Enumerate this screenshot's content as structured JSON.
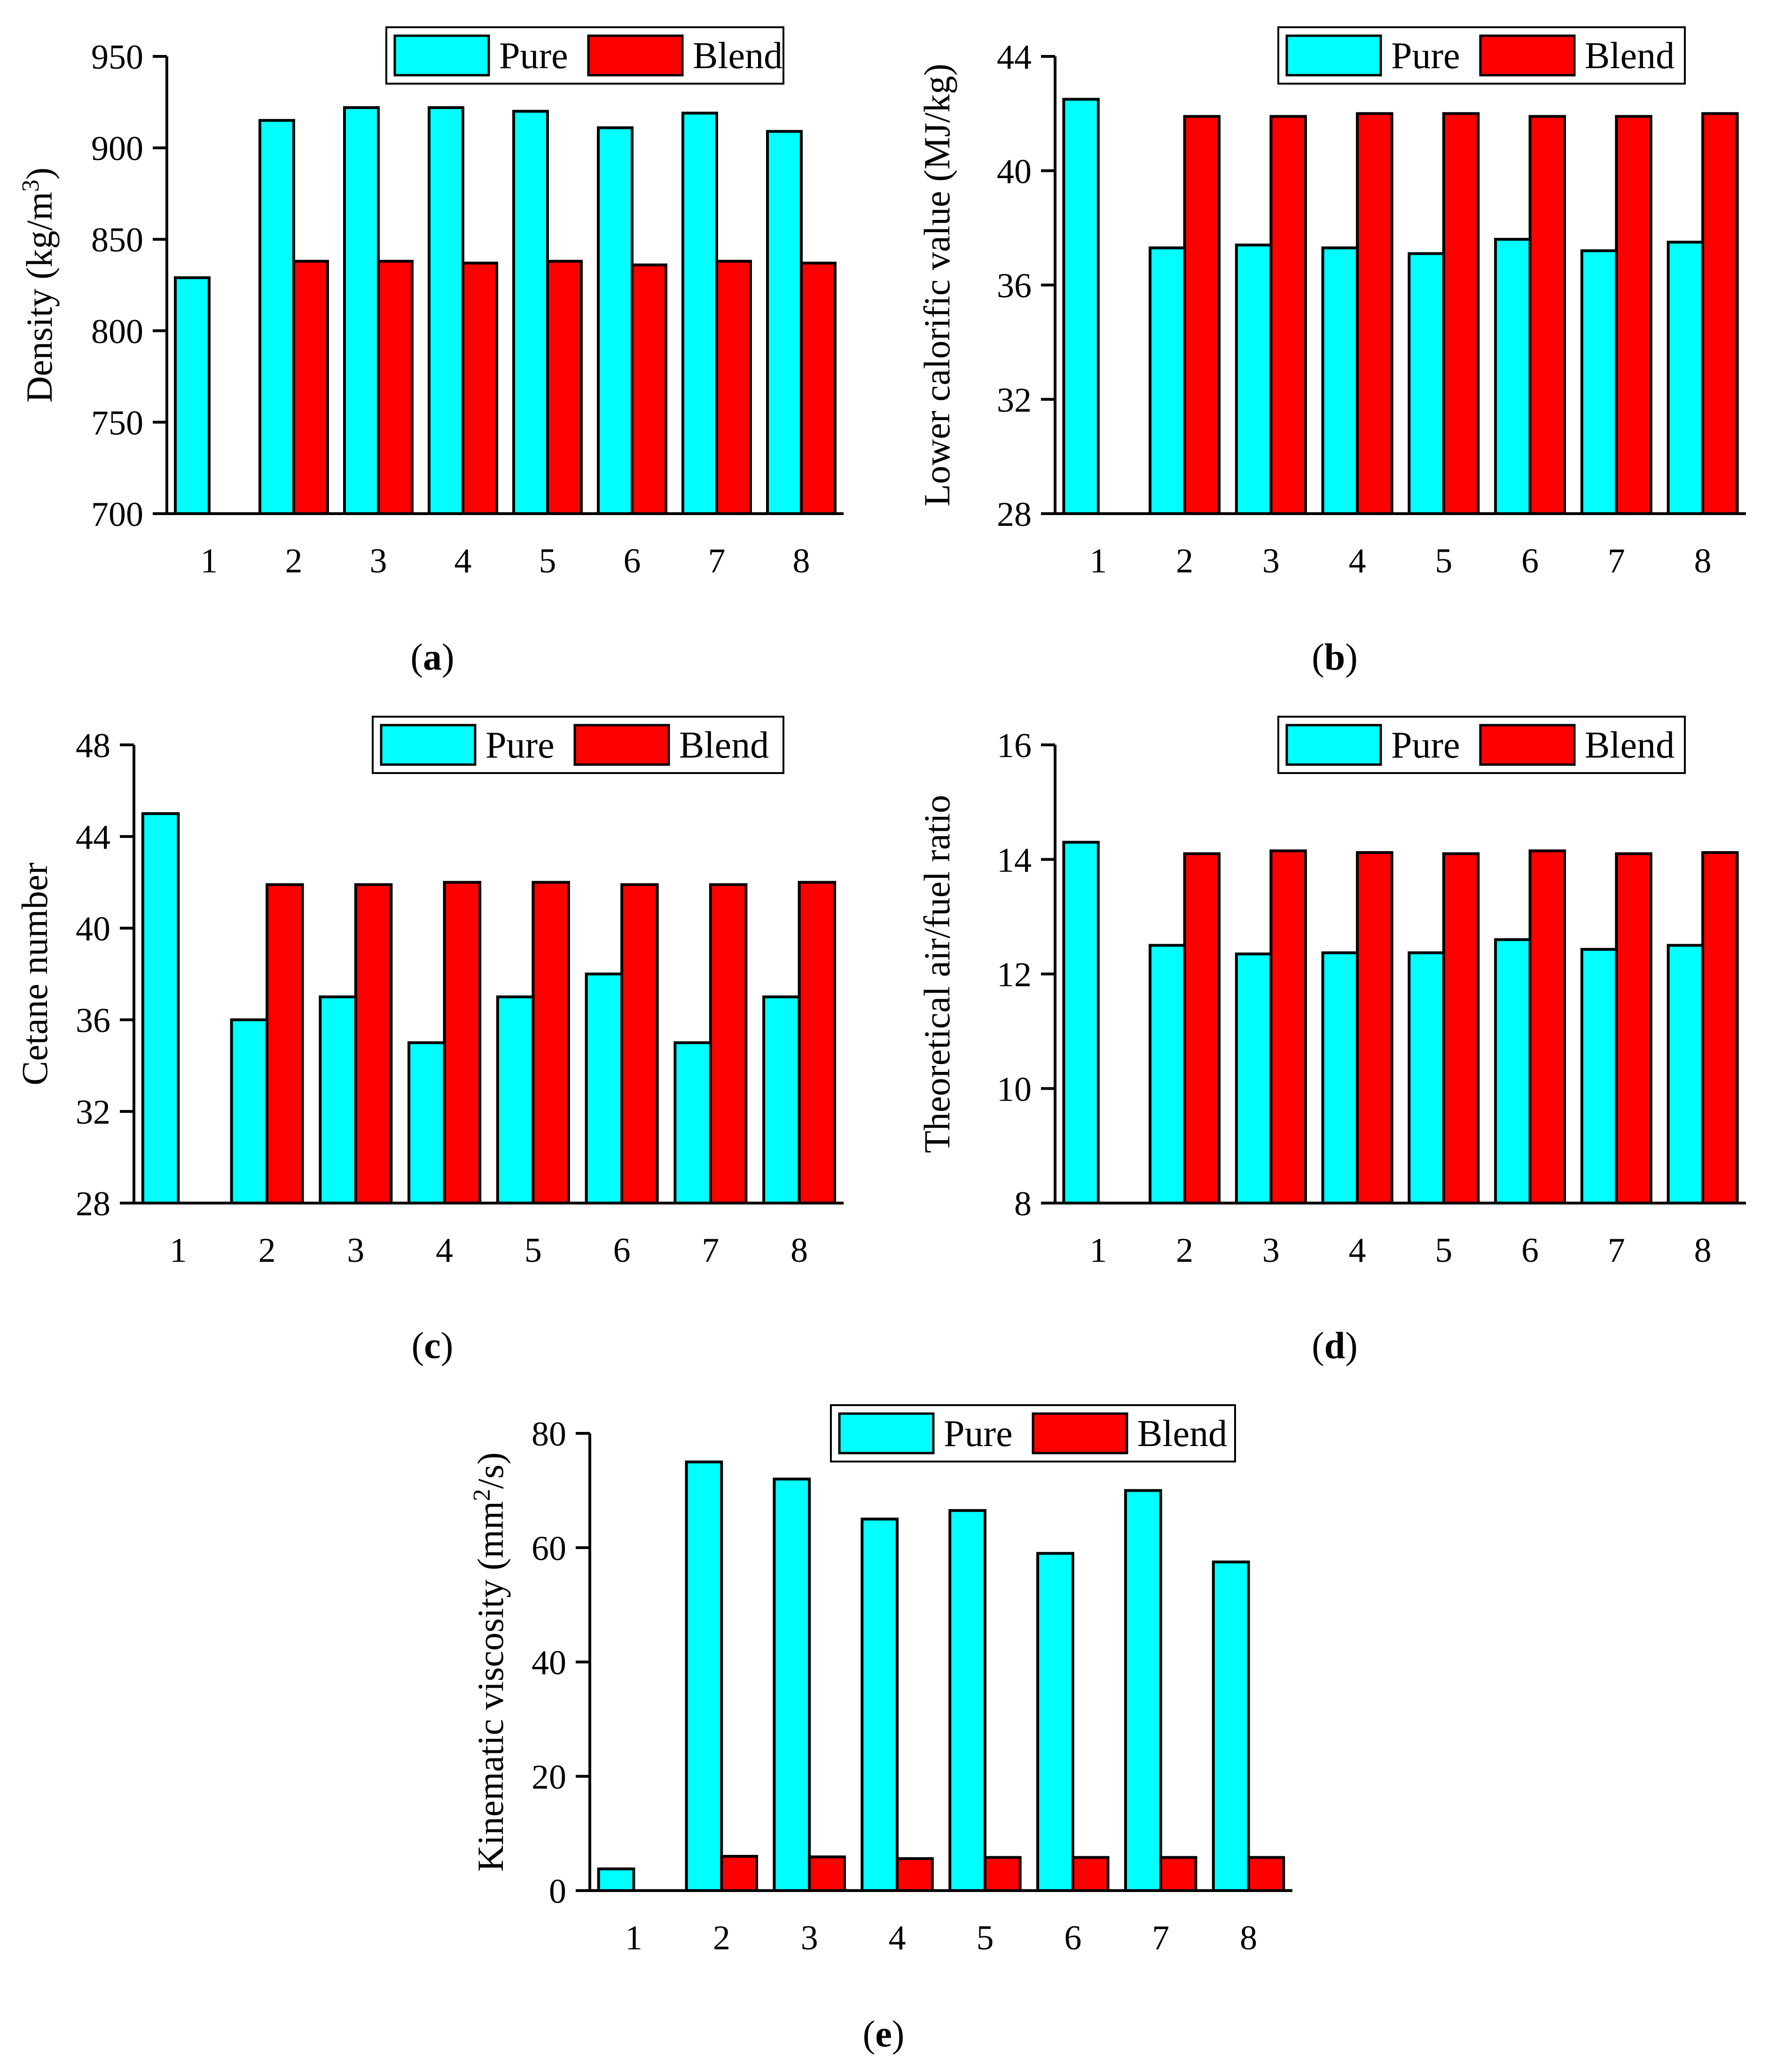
{
  "legend": {
    "pure": "Pure",
    "blend": "Blend"
  },
  "colors": {
    "pure": "#00FFFF",
    "blend": "#FF0000"
  },
  "chart_data": [
    {
      "id": "a",
      "type": "bar",
      "caption": "a",
      "ylabel": "Density (kg/m",
      "ylabel_sup": "3",
      "ylabel_end": ")",
      "ylim": [
        700,
        950
      ],
      "yticks": [
        700,
        750,
        800,
        850,
        900,
        950
      ],
      "categories": [
        "1",
        "2",
        "3",
        "4",
        "5",
        "6",
        "7",
        "8"
      ],
      "series": [
        {
          "name": "Pure",
          "values": [
            829,
            915,
            922,
            922,
            920,
            911,
            919,
            909
          ]
        },
        {
          "name": "Blend",
          "values": [
            null,
            838,
            838,
            837,
            838,
            836,
            838,
            837
          ]
        }
      ],
      "legend_position": "top-right"
    },
    {
      "id": "b",
      "type": "bar",
      "caption": "b",
      "ylabel": "Lower calorific value (MJ/kg)",
      "ylim": [
        28,
        44
      ],
      "yticks": [
        28,
        32,
        36,
        40,
        44
      ],
      "categories": [
        "1",
        "2",
        "3",
        "4",
        "5",
        "6",
        "7",
        "8"
      ],
      "series": [
        {
          "name": "Pure",
          "values": [
            42.5,
            37.3,
            37.4,
            37.3,
            37.1,
            37.6,
            37.2,
            37.5
          ]
        },
        {
          "name": "Blend",
          "values": [
            null,
            41.9,
            41.9,
            42.0,
            42.0,
            41.9,
            41.9,
            42.0
          ]
        }
      ],
      "legend_position": "top-right"
    },
    {
      "id": "c",
      "type": "bar",
      "caption": "c",
      "ylabel": "Cetane number",
      "ylim": [
        28,
        48
      ],
      "yticks": [
        28,
        32,
        36,
        40,
        44,
        48
      ],
      "categories": [
        "1",
        "2",
        "3",
        "4",
        "5",
        "6",
        "7",
        "8"
      ],
      "series": [
        {
          "name": "Pure",
          "values": [
            45,
            36,
            37,
            35,
            37,
            38,
            35,
            37
          ]
        },
        {
          "name": "Blend",
          "values": [
            null,
            41.9,
            41.9,
            42.0,
            42.0,
            41.9,
            41.9,
            42.0
          ]
        }
      ],
      "legend_position": "top-right"
    },
    {
      "id": "d",
      "type": "bar",
      "caption": "d",
      "ylabel": "Theoretical air/fuel ratio",
      "ylim": [
        8,
        16
      ],
      "yticks": [
        8,
        10,
        12,
        14,
        16
      ],
      "categories": [
        "1",
        "2",
        "3",
        "4",
        "5",
        "6",
        "7",
        "8"
      ],
      "series": [
        {
          "name": "Pure",
          "values": [
            14.3,
            12.5,
            12.35,
            12.37,
            12.37,
            12.6,
            12.43,
            12.5
          ]
        },
        {
          "name": "Blend",
          "values": [
            null,
            14.1,
            14.15,
            14.12,
            14.1,
            14.15,
            14.1,
            14.12
          ]
        }
      ],
      "legend_position": "top-right"
    },
    {
      "id": "e",
      "type": "bar",
      "caption": "e",
      "ylabel": "Kinematic viscosity (mm",
      "ylabel_sup": "2",
      "ylabel_end": "/s)",
      "ylim": [
        0,
        80
      ],
      "yticks": [
        0,
        20,
        40,
        60,
        80
      ],
      "categories": [
        "1",
        "2",
        "3",
        "4",
        "5",
        "6",
        "7",
        "8"
      ],
      "series": [
        {
          "name": "Pure",
          "values": [
            3.8,
            75,
            72,
            65,
            66.5,
            59,
            70,
            57.5
          ]
        },
        {
          "name": "Blend",
          "values": [
            null,
            6,
            5.9,
            5.6,
            5.8,
            5.8,
            5.8,
            5.8
          ]
        }
      ],
      "legend_position": "top-right"
    }
  ]
}
